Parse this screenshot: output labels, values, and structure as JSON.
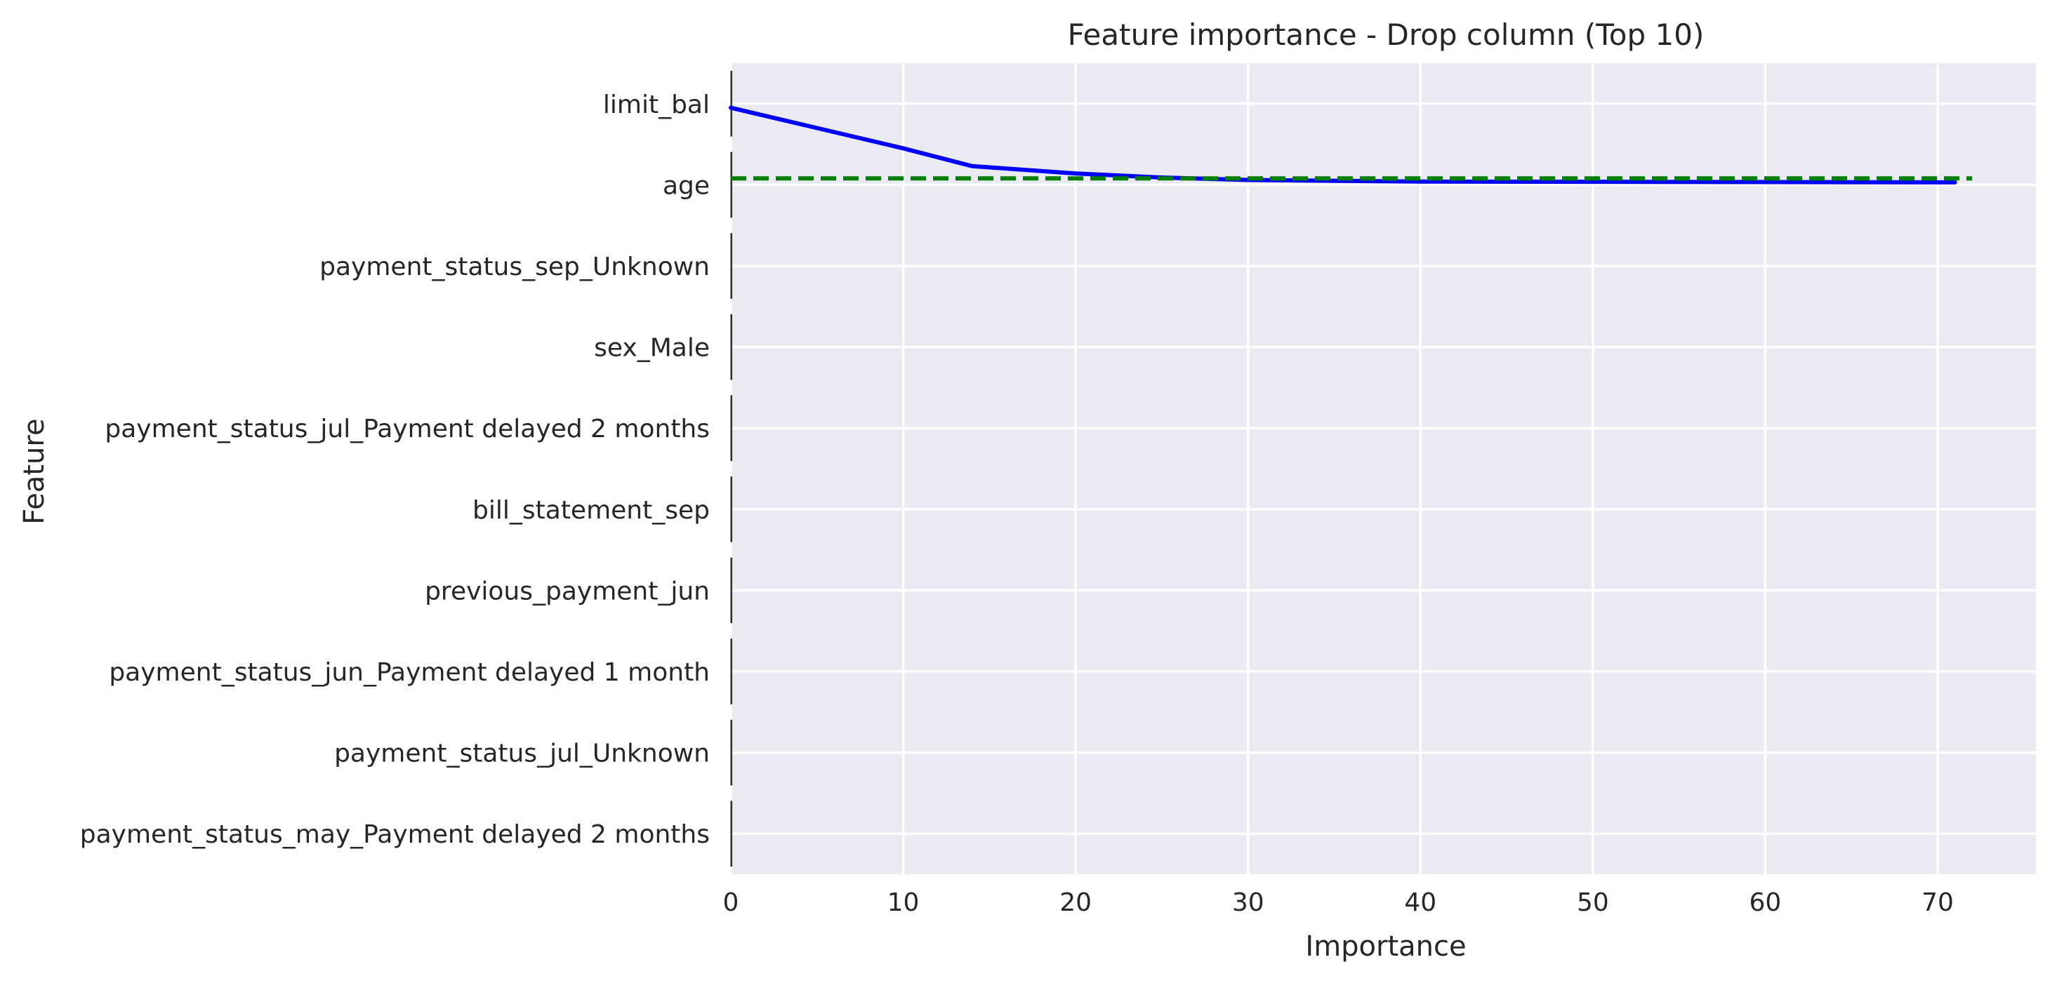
{
  "chart_data": {
    "type": "bar",
    "orientation": "horizontal",
    "title": "Feature importance - Drop column (Top 10)",
    "xlabel": "Importance",
    "ylabel": "Feature",
    "categories": [
      "limit_bal",
      "age",
      "payment_status_sep_Unknown",
      "sex_Male",
      "payment_status_jul_Payment delayed 2 months",
      "bill_statement_sep",
      "previous_payment_jun",
      "payment_status_jun_Payment delayed 1 month",
      "payment_status_jul_Unknown",
      "payment_status_may_Payment delayed 2 months"
    ],
    "values": [
      0.002,
      0.001,
      0.0005,
      0.0005,
      0.0004,
      0.0003,
      0.0003,
      0.0002,
      0.0002,
      0.0001
    ],
    "xlim": [
      0,
      75.7
    ],
    "xticks": [
      0,
      10,
      20,
      30,
      40,
      50,
      60,
      70
    ],
    "grid": true,
    "overlay_lines": [
      {
        "color": "#0000ff",
        "style": "solid",
        "points": [
          [
            0,
            0.05
          ],
          [
            5,
            0.3
          ],
          [
            10,
            0.55
          ],
          [
            14,
            0.77
          ],
          [
            20,
            0.86
          ],
          [
            25,
            0.91
          ],
          [
            30,
            0.94
          ],
          [
            40,
            0.96
          ],
          [
            71,
            0.97
          ]
        ]
      },
      {
        "color": "#008000",
        "style": "dashed",
        "points": [
          [
            0,
            0.92
          ],
          [
            72,
            0.92
          ]
        ]
      }
    ],
    "colors": {
      "plot_background": "#eaeaf2",
      "grid": "#ffffff",
      "bar": "#4c72b0",
      "text": "#262626"
    }
  }
}
